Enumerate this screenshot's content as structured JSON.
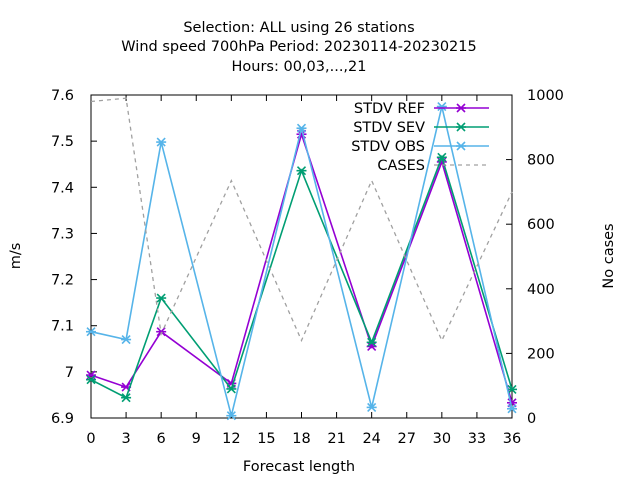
{
  "chart_data": {
    "type": "line",
    "title_lines": [
      "Selection: ALL using    26 stations",
      "Wind speed 700hPa   Period: 20230114-20230215",
      "Hours:  00,03,...,21"
    ],
    "xlabel": "Forecast length",
    "ylabel": "m/s",
    "y2label": "No cases",
    "x_ticks": [
      0,
      3,
      6,
      9,
      12,
      15,
      18,
      21,
      24,
      27,
      30,
      33,
      36
    ],
    "x_tick_labels": [
      "0",
      "3",
      "6",
      "9",
      "12",
      "15",
      "18",
      "21",
      "24",
      "27",
      "30",
      "33",
      "36"
    ],
    "xlim": [
      0,
      36
    ],
    "y_ticks": [
      6.9,
      7,
      7.1,
      7.2,
      7.3,
      7.4,
      7.5,
      7.6
    ],
    "y_tick_labels": [
      "6.9",
      "7",
      "7.1",
      "7.2",
      "7.3",
      "7.4",
      "7.5",
      "7.6"
    ],
    "ylim": [
      6.9,
      7.6
    ],
    "y2_ticks": [
      0,
      200,
      400,
      600,
      800,
      1000
    ],
    "y2_tick_labels": [
      "0",
      "200",
      "400",
      "600",
      "800",
      "1000"
    ],
    "y2lim": [
      0,
      1000
    ],
    "x": [
      0,
      3,
      6,
      12,
      18,
      24,
      30,
      36
    ],
    "series": [
      {
        "name": "STDV REF",
        "axis": "y",
        "color": "#9400d3",
        "marker": "x",
        "dash": false,
        "values": [
          6.993,
          6.967,
          7.087,
          6.975,
          7.515,
          7.055,
          7.455,
          6.933
        ]
      },
      {
        "name": "STDV SEV",
        "axis": "y",
        "color": "#009e73",
        "marker": "x",
        "dash": false,
        "values": [
          6.983,
          6.944,
          7.16,
          6.963,
          7.436,
          7.064,
          7.465,
          6.962
        ]
      },
      {
        "name": "STDV OBS",
        "axis": "y",
        "color": "#56b4e9",
        "marker": "x",
        "dash": false,
        "values": [
          7.087,
          7.07,
          7.498,
          6.905,
          7.528,
          6.923,
          7.575,
          6.92
        ]
      },
      {
        "name": "CASES",
        "axis": "y2",
        "color": "#a0a0a0",
        "marker": "none",
        "dash": true,
        "values": [
          980,
          990,
          260,
          735,
          240,
          735,
          240,
          700
        ]
      }
    ],
    "legend_position": "top-right",
    "grid": false
  }
}
